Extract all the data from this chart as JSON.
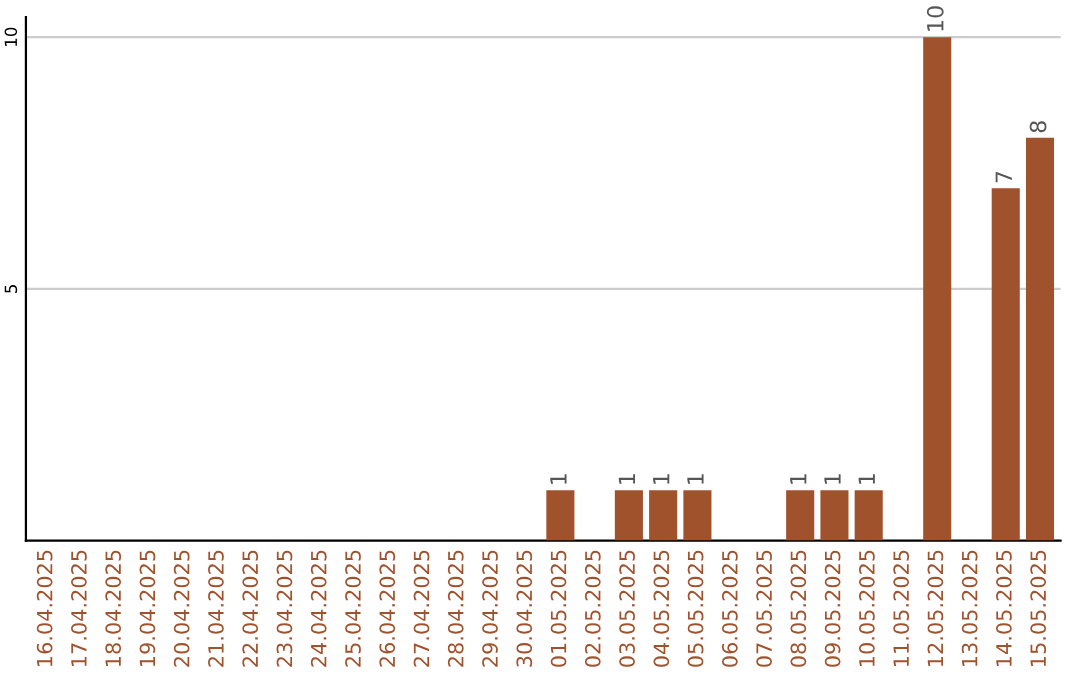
{
  "chart_data": {
    "type": "bar",
    "categories": [
      "16.04.2025",
      "17.04.2025",
      "18.04.2025",
      "19.04.2025",
      "20.04.2025",
      "21.04.2025",
      "22.04.2025",
      "23.04.2025",
      "24.04.2025",
      "25.04.2025",
      "26.04.2025",
      "27.04.2025",
      "28.04.2025",
      "29.04.2025",
      "30.04.2025",
      "01.05.2025",
      "02.05.2025",
      "03.05.2025",
      "04.05.2025",
      "05.05.2025",
      "06.05.2025",
      "07.05.2025",
      "08.05.2025",
      "09.05.2025",
      "10.05.2025",
      "11.05.2025",
      "12.05.2025",
      "13.05.2025",
      "14.05.2025",
      "15.05.2025"
    ],
    "values": [
      0,
      0,
      0,
      0,
      0,
      0,
      0,
      0,
      0,
      0,
      0,
      0,
      0,
      0,
      0,
      1,
      0,
      1,
      1,
      1,
      0,
      0,
      1,
      1,
      1,
      0,
      10,
      0,
      7,
      8
    ],
    "value_labels": [
      null,
      null,
      null,
      null,
      null,
      null,
      null,
      null,
      null,
      null,
      null,
      null,
      null,
      null,
      null,
      "1",
      null,
      "1",
      "1",
      "1",
      null,
      null,
      "1",
      "1",
      "1",
      null,
      "10",
      null,
      "7",
      "8"
    ],
    "color": "#a0522d",
    "ylim": [
      0,
      10.4
    ],
    "yticks": [
      5,
      10
    ],
    "grid": "y"
  }
}
